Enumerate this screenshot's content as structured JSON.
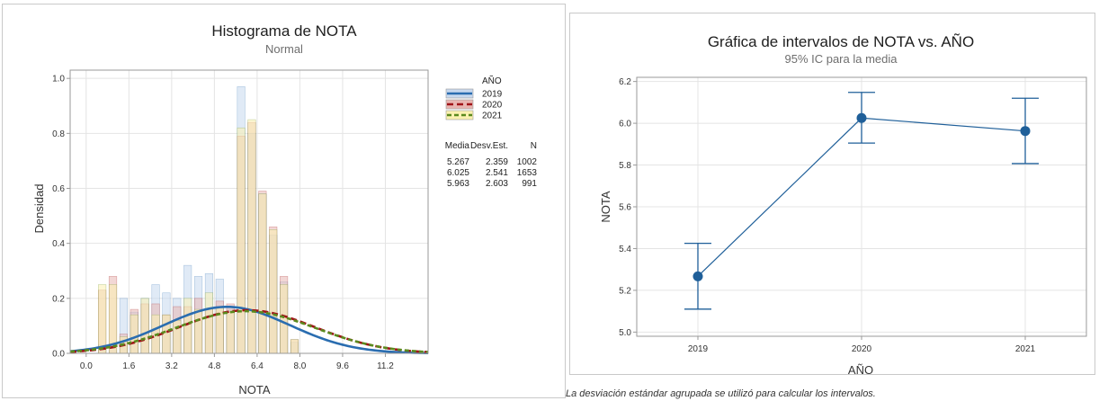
{
  "colors": {
    "y2019": "#2a6db0",
    "y2019_fill": "#c7d8ee",
    "y2020": "#a01418",
    "y2020_fill": "#e8b6b2",
    "y2021": "#5b8a1e",
    "y2021_fill": "#fbf1b0",
    "interval": "#1f5f99"
  },
  "chart_data": [
    {
      "type": "bar",
      "title": "Histograma de NOTA",
      "subtitle": "Normal",
      "xlabel": "NOTA",
      "ylabel": "Densidad",
      "xlim": [
        -0.6,
        12.8
      ],
      "ylim": [
        0,
        1.03
      ],
      "x_ticks": [
        "0.0",
        "1.6",
        "3.2",
        "4.8",
        "6.4",
        "8.0",
        "9.6",
        "11.2"
      ],
      "x_tick_values": [
        0.0,
        1.6,
        3.2,
        4.8,
        6.4,
        8.0,
        9.6,
        11.2
      ],
      "y_ticks": [
        "0.0",
        "0.2",
        "0.4",
        "0.6",
        "0.8",
        "1.0"
      ],
      "y_tick_values": [
        0,
        0.2,
        0.4,
        0.6,
        0.8,
        1.0
      ],
      "bin_width": 0.4,
      "bin_starts": [
        0.4,
        0.8,
        1.2,
        1.6,
        2.0,
        2.4,
        2.8,
        3.2,
        3.6,
        4.0,
        4.4,
        4.8,
        5.2,
        5.6,
        6.0,
        6.4,
        6.8,
        7.2,
        7.6,
        8.0,
        8.4,
        8.8,
        9.2,
        9.6
      ],
      "legend_title": "AÑO",
      "series": [
        {
          "name": "2019",
          "values": [
            0.03,
            0.01,
            0.2,
            0.15,
            0.2,
            0.25,
            0.22,
            0.2,
            0.32,
            0.28,
            0.29,
            0.27,
            0.16,
            0.97,
            0.8,
            0.58,
            0.43,
            0.26,
            0.04,
            0.0,
            0.0,
            0.0,
            0.0,
            0.0
          ],
          "mean": 5.267,
          "sd": 2.359,
          "n": 1002
        },
        {
          "name": "2020",
          "values": [
            0.23,
            0.28,
            0.07,
            0.16,
            0.18,
            0.18,
            0.14,
            0.17,
            0.17,
            0.2,
            0.16,
            0.19,
            0.18,
            0.79,
            0.84,
            0.59,
            0.46,
            0.28,
            0.05,
            0.0,
            0.0,
            0.0,
            0.0,
            0.0
          ],
          "mean": 6.025,
          "sd": 2.541,
          "n": 1653
        },
        {
          "name": "2021",
          "values": [
            0.25,
            0.25,
            0.06,
            0.14,
            0.2,
            0.14,
            0.14,
            0.12,
            0.2,
            0.16,
            0.22,
            0.17,
            0.15,
            0.82,
            0.85,
            0.58,
            0.45,
            0.25,
            0.05,
            0.0,
            0.0,
            0.0,
            0.0,
            0.0
          ],
          "mean": 5.963,
          "sd": 2.603,
          "n": 991
        }
      ],
      "stats_table": {
        "headers": [
          "Media",
          "Desv.Est.",
          "N"
        ],
        "rows": [
          [
            "5.267",
            "2.359",
            "1002"
          ],
          [
            "6.025",
            "2.541",
            "1653"
          ],
          [
            "5.963",
            "2.603",
            "991"
          ]
        ]
      },
      "legend_position": "right",
      "grid": true
    },
    {
      "type": "scatter",
      "title": "Gráfica de intervalos de NOTA vs. AÑO",
      "subtitle": "95% IC para la media",
      "xlabel": "AÑO",
      "ylabel": "NOTA",
      "categories": [
        "2019",
        "2020",
        "2021"
      ],
      "means": [
        5.267,
        6.025,
        5.963
      ],
      "lower": [
        5.11,
        5.905,
        5.807
      ],
      "upper": [
        5.425,
        6.148,
        6.12
      ],
      "ylim": [
        4.98,
        6.22
      ],
      "y_ticks": [
        "5.0",
        "5.2",
        "5.4",
        "5.6",
        "5.8",
        "6.0",
        "6.2"
      ],
      "y_tick_values": [
        5.0,
        5.2,
        5.4,
        5.6,
        5.8,
        6.0,
        6.2
      ],
      "grid": true
    }
  ],
  "footnote": "La desviación estándar agrupada se utilizó para calcular los intervalos."
}
